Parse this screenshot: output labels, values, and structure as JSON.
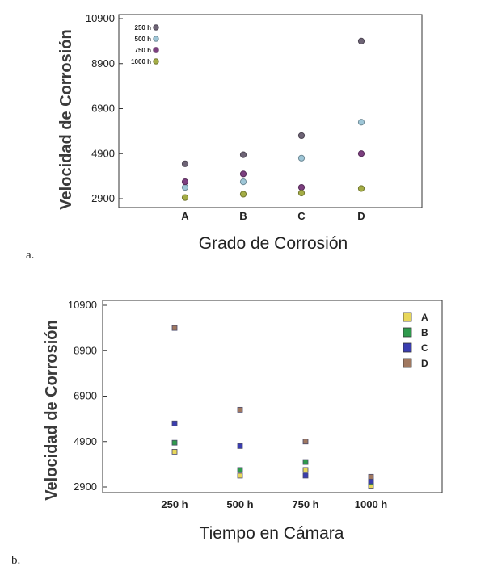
{
  "chart_data": [
    {
      "panel_label": "a.",
      "type": "scatter",
      "xlabel": "Grado de Corrosión",
      "ylabel": "Velocidad de Corrosión",
      "categories": [
        "A",
        "B",
        "C",
        "D"
      ],
      "ylim": [
        2500,
        10900
      ],
      "yticks": [
        2900,
        4900,
        6900,
        8900,
        10900
      ],
      "grid": false,
      "legend_position": "top-left",
      "series": [
        {
          "name": "250 h",
          "color": "#6e6476",
          "values": [
            4450,
            4850,
            5700,
            9900
          ]
        },
        {
          "name": "500 h",
          "color": "#9ec6d7",
          "values": [
            3400,
            3650,
            4700,
            6300
          ]
        },
        {
          "name": "750 h",
          "color": "#7c3f7f",
          "values": [
            3650,
            4000,
            3400,
            4900
          ]
        },
        {
          "name": "1000 h",
          "color": "#a4ad45",
          "values": [
            2950,
            3100,
            3150,
            3350
          ]
        }
      ]
    },
    {
      "panel_label": "b.",
      "type": "scatter",
      "xlabel": "Tiempo en Cámara",
      "ylabel": "Velocidad de Corrosión",
      "categories": [
        "250 h",
        "500 h",
        "750 h",
        "1000 h"
      ],
      "ylim": [
        2500,
        10900
      ],
      "yticks": [
        2900,
        4900,
        6900,
        8900,
        10900
      ],
      "grid": false,
      "legend_position": "top-right",
      "series": [
        {
          "name": "A",
          "color": "#e8d75a",
          "values": [
            4450,
            3400,
            3650,
            2950
          ]
        },
        {
          "name": "B",
          "color": "#2f9a4c",
          "values": [
            4850,
            3650,
            4000,
            3100
          ]
        },
        {
          "name": "C",
          "color": "#3a3db0",
          "values": [
            5700,
            4700,
            3400,
            3150
          ]
        },
        {
          "name": "D",
          "color": "#a07860",
          "values": [
            9900,
            6300,
            4900,
            3350
          ]
        }
      ]
    }
  ]
}
